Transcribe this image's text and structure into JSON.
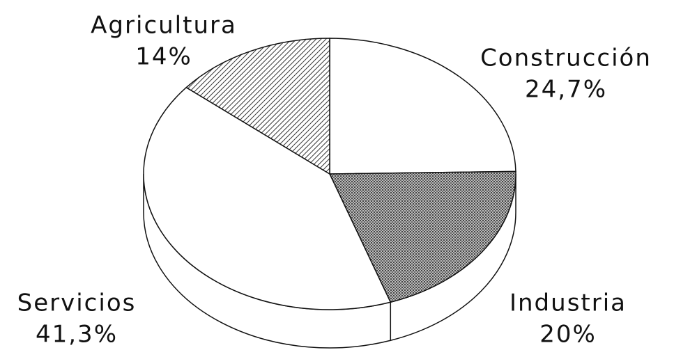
{
  "chart_data": {
    "type": "pie",
    "categories": [
      "Construcción",
      "Industria",
      "Servicios",
      "Agricultura"
    ],
    "values": [
      24.7,
      20,
      41.3,
      14
    ],
    "value_labels": [
      "24,7%",
      "20%",
      "41,3%",
      "14%"
    ],
    "colors": [
      "white",
      "crosshatch",
      "white",
      "hatch"
    ]
  }
}
